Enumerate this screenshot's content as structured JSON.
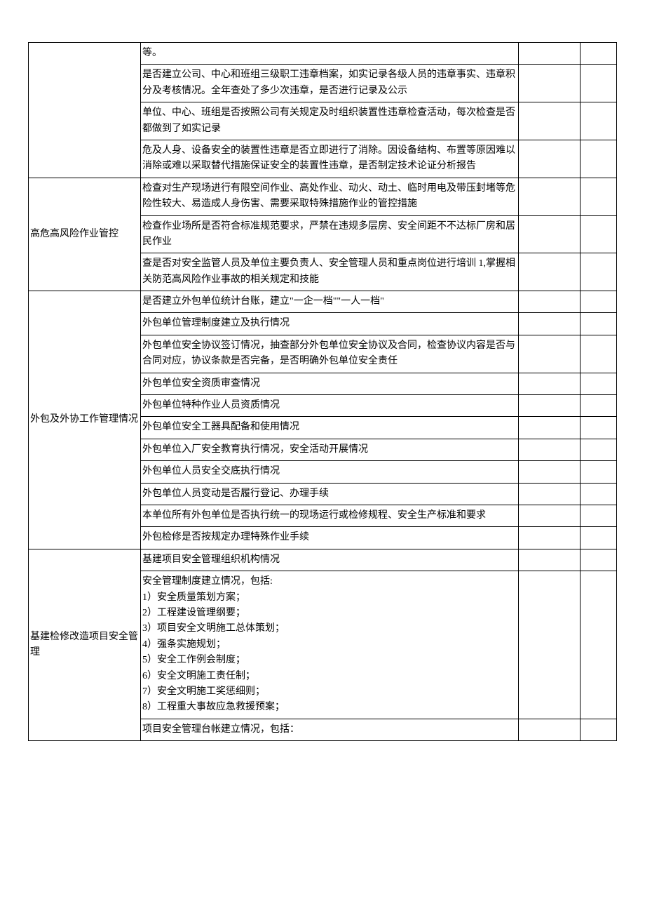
{
  "sections": [
    {
      "category": "",
      "rows": [
        "等。",
        "是否建立公司、中心和班组三级职工违章档案，如实记录各级人员的违章事实、违章积分及考核情况。全年查处了多少次违章，是否进行记录及公示",
        "单位、中心、班组是否按照公司有关规定及时组织装置性违章检查活动，每次检查是否都做到了如实记录",
        "危及人身、设备安全的装置性违章是否立即进行了消除。因设备结构、布置等原因难以消除或难以采取替代措施保证安全的装置性违章，是否制定技术论证分析报告"
      ]
    },
    {
      "category": "高危高风险作业管控",
      "rows": [
        "检查对生产现场进行有限空间作业、高处作业、动火、动土、临时用电及带压封堵等危险性较大、易造成人身伤害、需要采取特殊措施作业的管控措施",
        "检查作业场所是否符合标准规范要求，严禁在违规多层房、安全间距不不达标厂房和居民作业",
        "查是否对安全监管人员及单位主要负责人、安全管理人员和重点岗位进行培训 1,掌握相关防范高风险作业事故的相关规定和技能"
      ]
    },
    {
      "category": "外包及外协工作管理情况",
      "rows": [
        "是否建立外包单位统计台账，建立\"一企一档\"\"一人一档\"",
        "外包单位管理制度建立及执行情况",
        "外包单位安全协议签订情况，抽查部分外包单位安全协议及合同，检查协议内容是否与合同对应，协议条款是否完备，是否明确外包单位安全责任",
        "外包单位安全资质审查情况",
        "外包单位特种作业人员资质情况",
        "外包单位安全工器具配备和使用情况",
        "外包单位入厂安全教育执行情况，安全活动开展情况",
        "外包单位人员安全交底执行情况",
        "外包单位人员变动是否履行登记、办理手续",
        "本单位所有外包单位是否执行统一的现场运行或检修规程、安全生产标准和要求",
        "外包检修是否按规定办理特殊作业手续"
      ]
    },
    {
      "category": "基建检修改造项目安全管理",
      "rows": [
        "基建项目安全管理组织机构情况",
        "安全管理制度建立情况，包括:\n1）安全质量策划方案；\n2）工程建设管理纲要；\n3）项目安全文明施工总体策划；\n4）强条实施规划；\n5）安全工作例会制度；\n6）安全文明施工责任制；\n7）安全文明施工奖惩细则；\n8）工程重大事故应急救援预案；",
        "项目安全管理台帐建立情况，包括："
      ]
    }
  ]
}
